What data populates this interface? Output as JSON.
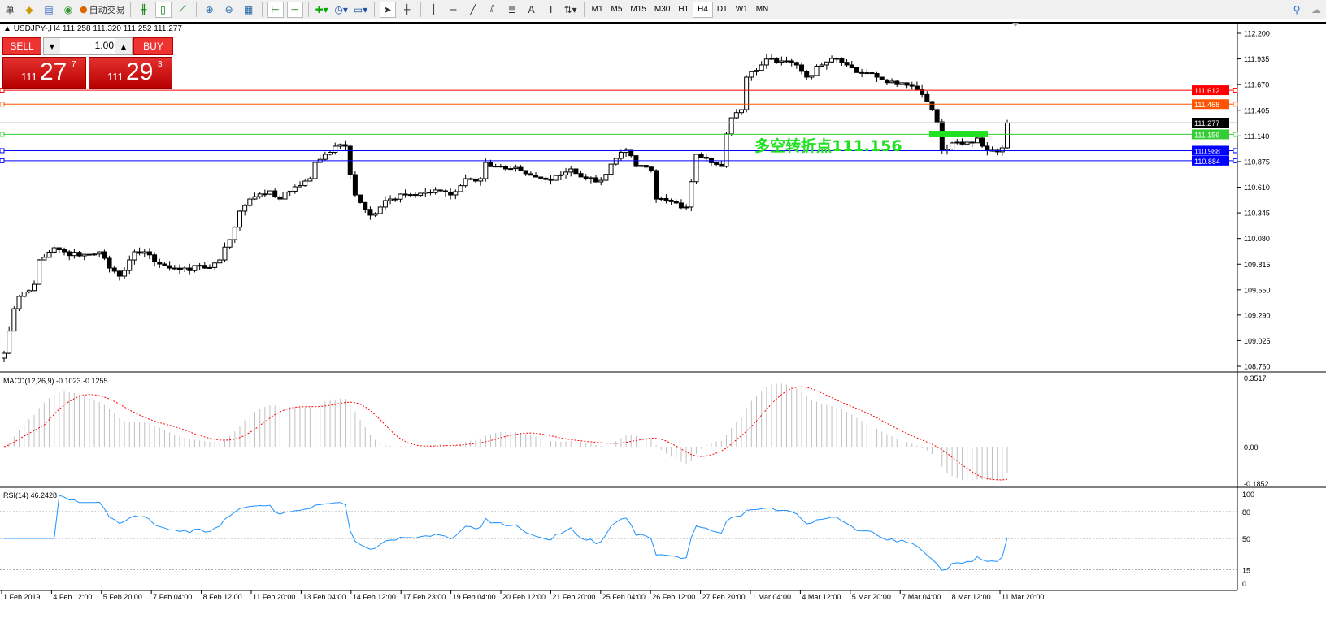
{
  "toolbar": {
    "left_label": "单",
    "auto_trade_label": "自动交易",
    "icons": [
      "new-order-icon",
      "market-watch-icon",
      "signals-icon",
      "auto-trading-icon",
      "bar-chart-icon",
      "candlestick-icon",
      "line-chart-icon",
      "zoom-in-icon",
      "zoom-out-icon",
      "tile-windows-icon",
      "auto-scroll-icon",
      "chart-shift-icon",
      "indicators-icon",
      "periods-icon",
      "templates-icon",
      "cursor-icon",
      "crosshair-icon",
      "vertical-line-icon",
      "horizontal-line-icon",
      "trendline-icon",
      "equidistant-channel-icon",
      "fibonacci-icon",
      "text-icon",
      "text-label-icon",
      "arrows-icon"
    ],
    "timeframes": [
      "M1",
      "M5",
      "M15",
      "M30",
      "H1",
      "H4",
      "D1",
      "W1",
      "MN"
    ],
    "active_timeframe": "H4"
  },
  "chart": {
    "symbol_line": "USDJPY-,H4  111.258 111.320 111.252 111.277",
    "trade_panel": {
      "sell_label": "SELL",
      "buy_label": "BUY",
      "lot": "1.00",
      "sell_price": {
        "small": "111",
        "main": "27",
        "sup": "7"
      },
      "buy_price": {
        "small": "111",
        "main": "29",
        "sup": "3"
      }
    },
    "price_axis": [
      "112.200",
      "111.935",
      "111.670",
      "111.405",
      "111.140",
      "110.875",
      "110.610",
      "110.345",
      "110.080",
      "109.815",
      "109.550",
      "109.290",
      "109.025",
      "108.760"
    ],
    "levels": [
      {
        "price": "111.612",
        "color": "#ff0000"
      },
      {
        "price": "111.468",
        "color": "#ff5500"
      },
      {
        "price": "111.277",
        "color": "#000000",
        "line": "#c0c0c0"
      },
      {
        "price": "111.156",
        "color": "#33cc33"
      },
      {
        "price": "110.988",
        "color": "#0000ff"
      },
      {
        "price": "110.884",
        "color": "#0000ff"
      }
    ],
    "pivot_text": "多空转折点111.156",
    "pivot_color": "#22e022",
    "close_waypoints": [
      [
        0,
        108.894
      ],
      [
        2,
        109.355
      ],
      [
        3,
        109.482
      ],
      [
        6,
        109.607
      ],
      [
        7,
        109.859
      ],
      [
        10,
        109.985
      ],
      [
        12,
        109.943
      ],
      [
        15,
        109.901
      ],
      [
        19,
        109.943
      ],
      [
        21,
        109.775
      ],
      [
        23,
        109.691
      ],
      [
        26,
        109.943
      ],
      [
        28,
        109.943
      ],
      [
        31,
        109.817
      ],
      [
        33,
        109.775
      ],
      [
        36,
        109.775
      ],
      [
        40,
        109.775
      ],
      [
        43,
        109.859
      ],
      [
        45,
        110.069
      ],
      [
        47,
        110.363
      ],
      [
        49,
        110.488
      ],
      [
        53,
        110.572
      ],
      [
        55,
        110.488
      ],
      [
        58,
        110.614
      ],
      [
        61,
        110.698
      ],
      [
        62,
        110.866
      ],
      [
        64,
        110.95
      ],
      [
        66,
        111.034
      ],
      [
        68,
        111.034
      ],
      [
        69,
        110.74
      ],
      [
        70,
        110.53
      ],
      [
        73,
        110.321
      ],
      [
        75,
        110.405
      ],
      [
        77,
        110.488
      ],
      [
        80,
        110.53
      ],
      [
        83,
        110.547
      ],
      [
        87,
        110.572
      ],
      [
        89,
        110.53
      ],
      [
        92,
        110.698
      ],
      [
        95,
        110.698
      ],
      [
        96,
        110.866
      ],
      [
        100,
        110.799
      ],
      [
        103,
        110.782
      ],
      [
        106,
        110.715
      ],
      [
        109,
        110.681
      ],
      [
        113,
        110.799
      ],
      [
        116,
        110.698
      ],
      [
        119,
        110.681
      ],
      [
        122,
        110.908
      ],
      [
        124,
        110.992
      ],
      [
        126,
        110.824
      ],
      [
        129,
        110.782
      ],
      [
        130,
        110.488
      ],
      [
        134,
        110.447
      ],
      [
        136,
        110.405
      ],
      [
        138,
        110.95
      ],
      [
        140,
        110.908
      ],
      [
        143,
        110.824
      ],
      [
        144,
        111.16
      ],
      [
        145,
        111.327
      ],
      [
        147,
        111.411
      ],
      [
        148,
        111.747
      ],
      [
        151,
        111.873
      ],
      [
        153,
        111.94
      ],
      [
        156,
        111.915
      ],
      [
        158,
        111.873
      ],
      [
        160,
        111.747
      ],
      [
        163,
        111.873
      ],
      [
        165,
        111.94
      ],
      [
        168,
        111.873
      ],
      [
        171,
        111.789
      ],
      [
        174,
        111.747
      ],
      [
        177,
        111.705
      ],
      [
        180,
        111.663
      ],
      [
        182,
        111.621
      ],
      [
        184,
        111.495
      ],
      [
        186,
        111.285
      ],
      [
        187,
        110.992
      ],
      [
        190,
        111.076
      ],
      [
        192,
        111.076
      ],
      [
        194,
        111.118
      ],
      [
        195,
        111.034
      ],
      [
        197,
        110.992
      ],
      [
        199,
        111.017
      ],
      [
        200,
        111.277
      ]
    ]
  },
  "macd": {
    "label": "MACD(12,26,9) -0.1023 -0.1255",
    "axis": [
      "0.3517",
      "0.00",
      "-0.1852"
    ],
    "signal_color": "#ff0000"
  },
  "rsi": {
    "label": "RSI(14) 46.2428",
    "axis": [
      "100",
      "80",
      "50",
      "15",
      "0"
    ],
    "line_color": "#1e90ff"
  },
  "time_axis": [
    "1 Feb 2019",
    "4 Feb 12:00",
    "5 Feb 20:00",
    "7 Feb 04:00",
    "8 Feb 12:00",
    "11 Feb 20:00",
    "13 Feb 04:00",
    "14 Feb 12:00",
    "17 Feb 23:00",
    "19 Feb 04:00",
    "20 Feb 12:00",
    "21 Feb 20:00",
    "25 Feb 04:00",
    "26 Feb 12:00",
    "27 Feb 20:00",
    "1 Mar 04:00",
    "4 Mar 12:00",
    "5 Mar 20:00",
    "7 Mar 04:00",
    "8 Mar 12:00",
    "11 Mar 20:00"
  ]
}
